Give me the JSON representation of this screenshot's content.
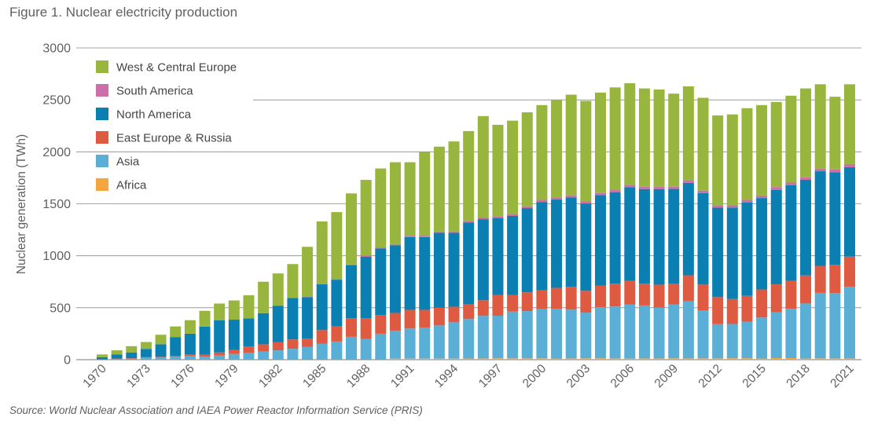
{
  "figure": {
    "title": "Figure 1. Nuclear electricity production",
    "source": "Source: World Nuclear Association and IAEA Power Reactor Information Service (PRIS)"
  },
  "chart_data": {
    "type": "bar",
    "stacked": true,
    "ylabel": "Nuclear generation (TWh)",
    "xlabel": "",
    "ylim": [
      0,
      3000
    ],
    "yticks": [
      0,
      500,
      1000,
      1500,
      2000,
      2500,
      3000
    ],
    "grid": true,
    "legend_position": "top-left",
    "categories": [
      "1970",
      "1971",
      "1972",
      "1973",
      "1974",
      "1975",
      "1976",
      "1977",
      "1978",
      "1979",
      "1980",
      "1981",
      "1982",
      "1983",
      "1984",
      "1985",
      "1986",
      "1987",
      "1988",
      "1989",
      "1990",
      "1991",
      "1992",
      "1993",
      "1994",
      "1995",
      "1996",
      "1997",
      "1998",
      "1999",
      "2000",
      "2001",
      "2002",
      "2003",
      "2004",
      "2005",
      "2006",
      "2007",
      "2008",
      "2009",
      "2010",
      "2011",
      "2012",
      "2013",
      "2014",
      "2015",
      "2016",
      "2017",
      "2018",
      "2019",
      "2020",
      "2021"
    ],
    "xtick_labels": [
      "1970",
      "1973",
      "1976",
      "1979",
      "1982",
      "1985",
      "1988",
      "1991",
      "1994",
      "1997",
      "2000",
      "2003",
      "2006",
      "2009",
      "2012",
      "2015",
      "2018",
      "2021"
    ],
    "series": [
      {
        "name": "Africa",
        "color": "#f7a541",
        "values": [
          0,
          0,
          0,
          0,
          0,
          0,
          0,
          0,
          0,
          0,
          0,
          0,
          0,
          0,
          0,
          0,
          0,
          0,
          0,
          0,
          10,
          10,
          10,
          10,
          10,
          11,
          12,
          13,
          13,
          13,
          13,
          11,
          12,
          13,
          14,
          12,
          10,
          12,
          12,
          13,
          12,
          13,
          12,
          14,
          14,
          11,
          15,
          15,
          11,
          13,
          12,
          12
        ]
      },
      {
        "name": "Asia",
        "color": "#5aafd6",
        "values": [
          2,
          8,
          10,
          18,
          20,
          28,
          35,
          28,
          40,
          55,
          68,
          78,
          90,
          105,
          122,
          155,
          175,
          220,
          200,
          250,
          270,
          290,
          300,
          320,
          350,
          380,
          410,
          410,
          450,
          455,
          475,
          480,
          470,
          440,
          490,
          500,
          520,
          510,
          490,
          520,
          550,
          460,
          330,
          330,
          350,
          395,
          440,
          475,
          530,
          630,
          630,
          690
        ]
      },
      {
        "name": "East Europe & Russia",
        "color": "#de5b41",
        "values": [
          2,
          3,
          5,
          6,
          8,
          10,
          15,
          20,
          30,
          40,
          60,
          70,
          80,
          90,
          80,
          130,
          145,
          180,
          200,
          180,
          170,
          180,
          170,
          170,
          150,
          140,
          150,
          200,
          160,
          180,
          180,
          200,
          220,
          210,
          210,
          220,
          230,
          210,
          220,
          200,
          250,
          250,
          260,
          240,
          250,
          270,
          270,
          270,
          270,
          260,
          270,
          290
        ]
      },
      {
        "name": "North America",
        "color": "#0a7fb2",
        "values": [
          20,
          40,
          55,
          80,
          120,
          180,
          200,
          270,
          310,
          290,
          270,
          300,
          350,
          400,
          400,
          440,
          450,
          510,
          590,
          640,
          650,
          700,
          700,
          720,
          710,
          790,
          780,
          740,
          760,
          810,
          850,
          850,
          860,
          840,
          870,
          880,
          900,
          910,
          920,
          910,
          890,
          880,
          860,
          880,
          900,
          880,
          910,
          920,
          920,
          910,
          890,
          860
        ]
      },
      {
        "name": "South America",
        "color": "#cc6fa8",
        "values": [
          0,
          0,
          0,
          0,
          0,
          0,
          0,
          0,
          0,
          0,
          0,
          0,
          0,
          0,
          2,
          5,
          5,
          6,
          10,
          10,
          12,
          12,
          13,
          13,
          14,
          15,
          16,
          18,
          18,
          18,
          20,
          20,
          20,
          20,
          20,
          20,
          22,
          22,
          22,
          22,
          24,
          24,
          24,
          24,
          24,
          24,
          26,
          24,
          24,
          26,
          28,
          30
        ]
      },
      {
        "name": "West & Central Europe",
        "color": "#98b63d",
        "values": [
          26,
          39,
          60,
          66,
          92,
          102,
          130,
          152,
          160,
          185,
          222,
          302,
          310,
          325,
          482,
          600,
          645,
          684,
          730,
          760,
          788,
          708,
          807,
          817,
          866,
          864,
          976,
          879,
          899,
          904,
          912,
          939,
          968,
          967,
          966,
          988,
          978,
          946,
          936,
          895,
          904,
          893,
          864,
          872,
          882,
          870,
          819,
          836,
          855,
          811,
          700,
          768
        ]
      }
    ]
  }
}
